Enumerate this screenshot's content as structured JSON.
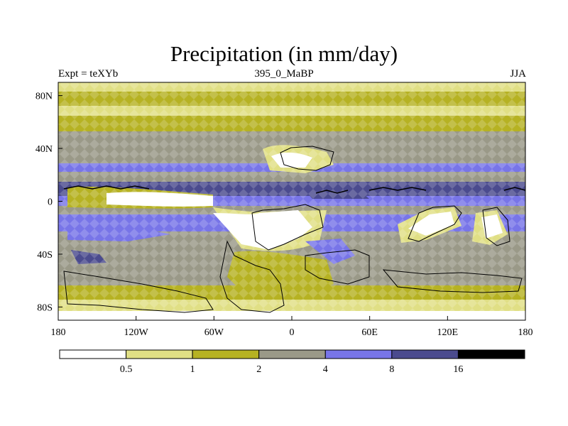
{
  "title": "Precipitation (in mm/day)",
  "subtitles": {
    "left": "Expt = teXYb",
    "center": "395_0_MaBP",
    "right": "JJA"
  },
  "map": {
    "projection": "cylindrical-equidistant",
    "lon_range": [
      -180,
      180
    ],
    "lat_range": [
      -90,
      90
    ],
    "x_ticks": [
      {
        "value": -180,
        "label": "180"
      },
      {
        "value": -120,
        "label": "120W"
      },
      {
        "value": -60,
        "label": "60W"
      },
      {
        "value": 0,
        "label": "0"
      },
      {
        "value": 60,
        "label": "60E"
      },
      {
        "value": 120,
        "label": "120E"
      },
      {
        "value": 180,
        "label": "180"
      }
    ],
    "y_ticks": [
      {
        "value": 80,
        "label": "80N"
      },
      {
        "value": 40,
        "label": "40N"
      },
      {
        "value": 0,
        "label": "0"
      },
      {
        "value": -40,
        "label": "40S"
      },
      {
        "value": -80,
        "label": "80S"
      }
    ],
    "hatched_overlay": true
  },
  "colorbar": {
    "bins": [
      {
        "color": "#ffffff"
      },
      {
        "color": "#e0df85"
      },
      {
        "color": "#b6b223"
      },
      {
        "color": "#9a9988"
      },
      {
        "color": "#7875e8"
      },
      {
        "color": "#4b4b8e"
      },
      {
        "color": "#000000"
      }
    ],
    "boundaries": [
      {
        "value": 0.5,
        "label": "0.5"
      },
      {
        "value": 1,
        "label": "1"
      },
      {
        "value": 2,
        "label": "2"
      },
      {
        "value": 4,
        "label": "4"
      },
      {
        "value": 8,
        "label": "8"
      },
      {
        "value": 16,
        "label": "16"
      }
    ]
  }
}
